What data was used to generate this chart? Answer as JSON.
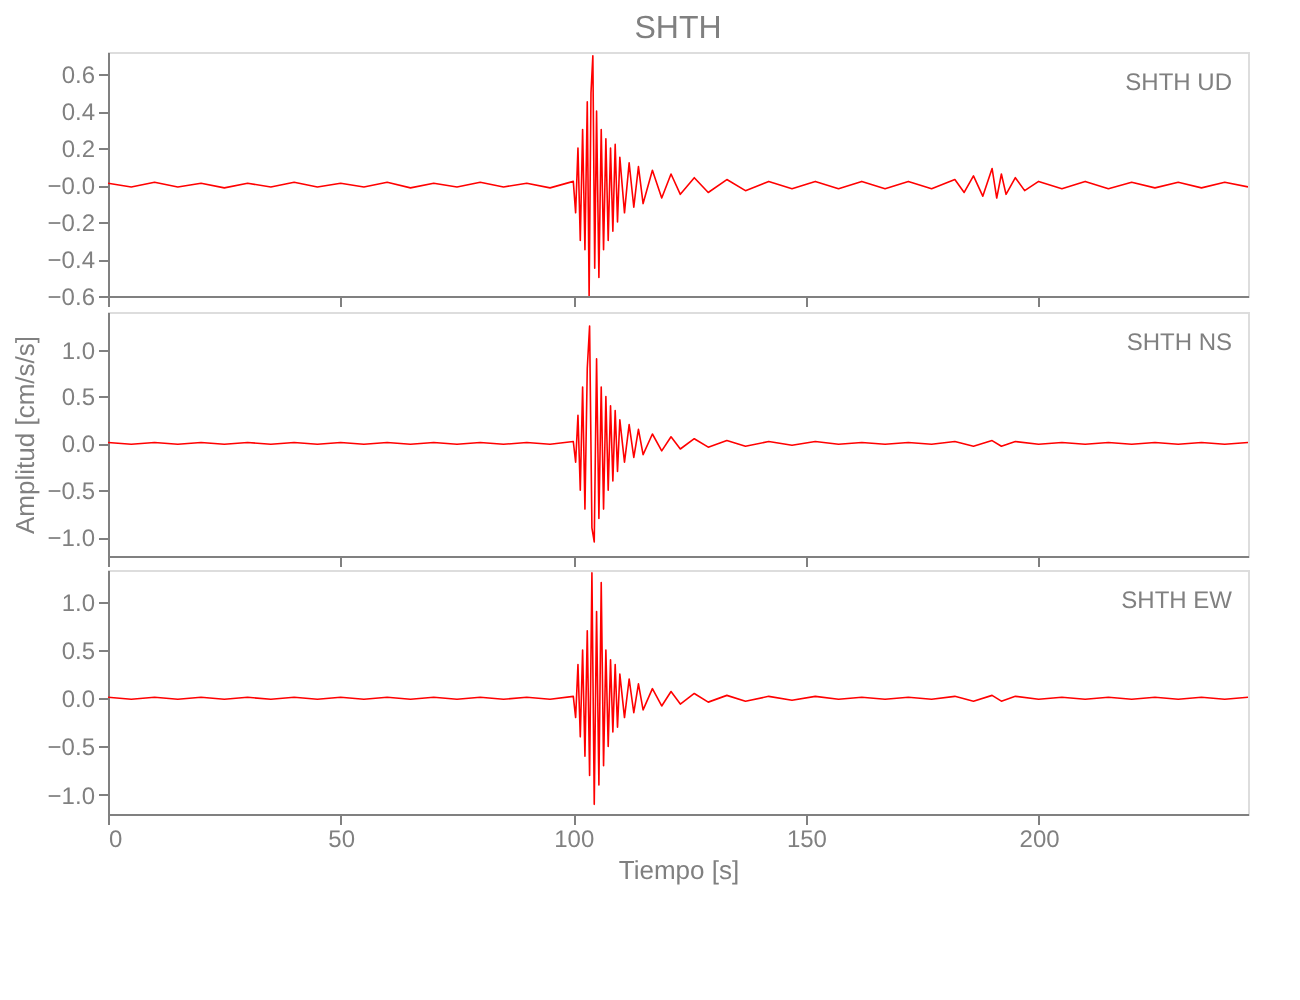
{
  "chart_data": [
    {
      "type": "line",
      "title": "SHTH",
      "annotations": [
        "SHTH UD"
      ],
      "xlim": [
        0,
        245
      ],
      "ylim": [
        -0.6,
        0.72
      ],
      "xticks": [
        0,
        50,
        100,
        150,
        200
      ],
      "yticks": [
        {
          "value": -0.6,
          "label": "−0.6"
        },
        {
          "value": -0.4,
          "label": "−0.4"
        },
        {
          "value": -0.2,
          "label": "−0.2"
        },
        {
          "value": 0,
          "label": "−0.0"
        },
        {
          "value": 0.2,
          "label": "0.2"
        },
        {
          "value": 0.4,
          "label": "0.4"
        },
        {
          "value": 0.6,
          "label": "0.6"
        }
      ],
      "tick_labels": "y",
      "series": [
        {
          "color": "#ff0000",
          "x": [
            0,
            5,
            10,
            15,
            20,
            25,
            30,
            35,
            40,
            45,
            50,
            55,
            60,
            65,
            70,
            75,
            80,
            85,
            90,
            95,
            100,
            100.5,
            101,
            101.5,
            102,
            102.5,
            103,
            103.4,
            103.8,
            104.2,
            104.6,
            105,
            105.5,
            106,
            106.5,
            107,
            107.5,
            108,
            108.5,
            109,
            109.5,
            110,
            111,
            112,
            113,
            114,
            115,
            117,
            119,
            121,
            123,
            126,
            129,
            133,
            137,
            142,
            147,
            152,
            157,
            162,
            167,
            172,
            177,
            182,
            184,
            186,
            188,
            190,
            191,
            192,
            193,
            195,
            197,
            200,
            205,
            210,
            215,
            220,
            225,
            230,
            235,
            240,
            245
          ],
          "values": [
            0.01,
            -0.01,
            0.015,
            -0.01,
            0.01,
            -0.015,
            0.01,
            -0.01,
            0.015,
            -0.01,
            0.01,
            -0.01,
            0.015,
            -0.015,
            0.01,
            -0.01,
            0.015,
            -0.01,
            0.01,
            -0.015,
            0.02,
            -0.15,
            0.2,
            -0.3,
            0.3,
            -0.35,
            0.45,
            -0.6,
            0.5,
            0.7,
            -0.45,
            0.4,
            -0.5,
            0.3,
            -0.35,
            0.25,
            -0.3,
            0.2,
            -0.25,
            0.22,
            -0.2,
            0.15,
            -0.15,
            0.12,
            -0.12,
            0.1,
            -0.1,
            0.08,
            -0.07,
            0.06,
            -0.05,
            0.04,
            -0.04,
            0.03,
            -0.03,
            0.02,
            -0.02,
            0.02,
            -0.02,
            0.02,
            -0.02,
            0.02,
            -0.02,
            0.03,
            -0.04,
            0.05,
            -0.06,
            0.09,
            -0.07,
            0.06,
            -0.05,
            0.04,
            -0.03,
            0.02,
            -0.02,
            0.02,
            -0.02,
            0.015,
            -0.015,
            0.015,
            -0.015,
            0.015,
            -0.01
          ]
        }
      ]
    },
    {
      "type": "line",
      "ylabel": "Amplitud [cm/s/s]",
      "annotations": [
        "SHTH NS"
      ],
      "xlim": [
        0,
        245
      ],
      "ylim": [
        -1.2,
        1.4
      ],
      "xticks": [
        0,
        50,
        100,
        150,
        200
      ],
      "yticks": [
        {
          "value": -1,
          "label": "−1.0"
        },
        {
          "value": -0.5,
          "label": "−0.5"
        },
        {
          "value": 0,
          "label": "0.0"
        },
        {
          "value": 0.5,
          "label": "0.5"
        },
        {
          "value": 1,
          "label": "1.0"
        }
      ],
      "tick_labels": "y",
      "series": [
        {
          "color": "#ff0000",
          "x": [
            0,
            5,
            10,
            15,
            20,
            25,
            30,
            35,
            40,
            45,
            50,
            55,
            60,
            65,
            70,
            75,
            80,
            85,
            90,
            95,
            100,
            100.5,
            101,
            101.5,
            102,
            102.5,
            103,
            103.5,
            104,
            104.5,
            105,
            105.5,
            106,
            106.5,
            107,
            107.5,
            108,
            108.5,
            109,
            109.5,
            110,
            111,
            112,
            113,
            114,
            115,
            117,
            119,
            121,
            123,
            126,
            129,
            133,
            137,
            142,
            147,
            152,
            157,
            162,
            167,
            172,
            177,
            182,
            186,
            190,
            192,
            195,
            200,
            205,
            210,
            215,
            220,
            225,
            230,
            235,
            240,
            245
          ],
          "values": [
            0.01,
            -0.01,
            0.01,
            -0.01,
            0.01,
            -0.01,
            0.01,
            -0.01,
            0.01,
            -0.01,
            0.01,
            -0.01,
            0.01,
            -0.01,
            0.01,
            -0.01,
            0.01,
            -0.01,
            0.01,
            -0.01,
            0.02,
            -0.2,
            0.3,
            -0.5,
            0.6,
            -0.7,
            0.8,
            1.25,
            -0.9,
            -1.05,
            0.9,
            -0.8,
            0.6,
            -0.7,
            0.5,
            -0.5,
            0.4,
            -0.4,
            0.35,
            -0.3,
            0.25,
            -0.2,
            0.2,
            -0.15,
            0.15,
            -0.12,
            0.1,
            -0.08,
            0.07,
            -0.06,
            0.05,
            -0.04,
            0.03,
            -0.03,
            0.02,
            -0.02,
            0.02,
            -0.01,
            0.01,
            -0.01,
            0.01,
            -0.01,
            0.02,
            -0.03,
            0.03,
            -0.03,
            0.02,
            -0.01,
            0.01,
            -0.01,
            0.01,
            -0.01,
            0.01,
            -0.01,
            0.01,
            -0.01,
            0.01
          ]
        }
      ]
    },
    {
      "type": "line",
      "xlabel": "Tiempo [s]",
      "annotations": [
        "SHTH EW"
      ],
      "xlim": [
        0,
        245
      ],
      "ylim": [
        -1.2,
        1.33
      ],
      "xticks": [
        0,
        50,
        100,
        150,
        200
      ],
      "yticks": [
        {
          "value": -1,
          "label": "−1.0"
        },
        {
          "value": -0.5,
          "label": "−0.5"
        },
        {
          "value": 0,
          "label": "0.0"
        },
        {
          "value": 0.5,
          "label": "0.5"
        },
        {
          "value": 1,
          "label": "1.0"
        }
      ],
      "series": [
        {
          "color": "#ff0000",
          "x": [
            0,
            5,
            10,
            15,
            20,
            25,
            30,
            35,
            40,
            45,
            50,
            55,
            60,
            65,
            70,
            75,
            80,
            85,
            90,
            95,
            100,
            100.5,
            101,
            101.5,
            102,
            102.5,
            103,
            103.5,
            104,
            104.5,
            105,
            105.5,
            106,
            106.5,
            107,
            107.5,
            108,
            108.5,
            109,
            109.5,
            110,
            111,
            112,
            113,
            114,
            115,
            117,
            119,
            121,
            123,
            126,
            129,
            133,
            137,
            142,
            147,
            152,
            157,
            162,
            167,
            172,
            177,
            182,
            186,
            190,
            192,
            195,
            200,
            205,
            210,
            215,
            220,
            225,
            230,
            235,
            240,
            245
          ],
          "values": [
            0.01,
            -0.01,
            0.01,
            -0.01,
            0.01,
            -0.01,
            0.01,
            -0.01,
            0.01,
            -0.01,
            0.01,
            -0.01,
            0.01,
            -0.01,
            0.01,
            -0.01,
            0.01,
            -0.01,
            0.01,
            -0.01,
            0.02,
            -0.2,
            0.35,
            -0.4,
            0.5,
            -0.6,
            0.7,
            -0.8,
            1.3,
            -1.1,
            0.9,
            -0.9,
            1.2,
            -0.7,
            0.5,
            -0.5,
            0.4,
            -0.35,
            0.35,
            -0.3,
            0.25,
            -0.2,
            0.2,
            -0.15,
            0.15,
            -0.12,
            0.1,
            -0.08,
            0.07,
            -0.06,
            0.05,
            -0.04,
            0.03,
            -0.03,
            0.02,
            -0.02,
            0.02,
            -0.01,
            0.01,
            -0.01,
            0.01,
            -0.01,
            0.02,
            -0.03,
            0.03,
            -0.03,
            0.02,
            -0.01,
            0.01,
            -0.01,
            0.01,
            -0.01,
            0.01,
            -0.01,
            0.01,
            -0.01,
            0.01
          ]
        }
      ]
    }
  ]
}
